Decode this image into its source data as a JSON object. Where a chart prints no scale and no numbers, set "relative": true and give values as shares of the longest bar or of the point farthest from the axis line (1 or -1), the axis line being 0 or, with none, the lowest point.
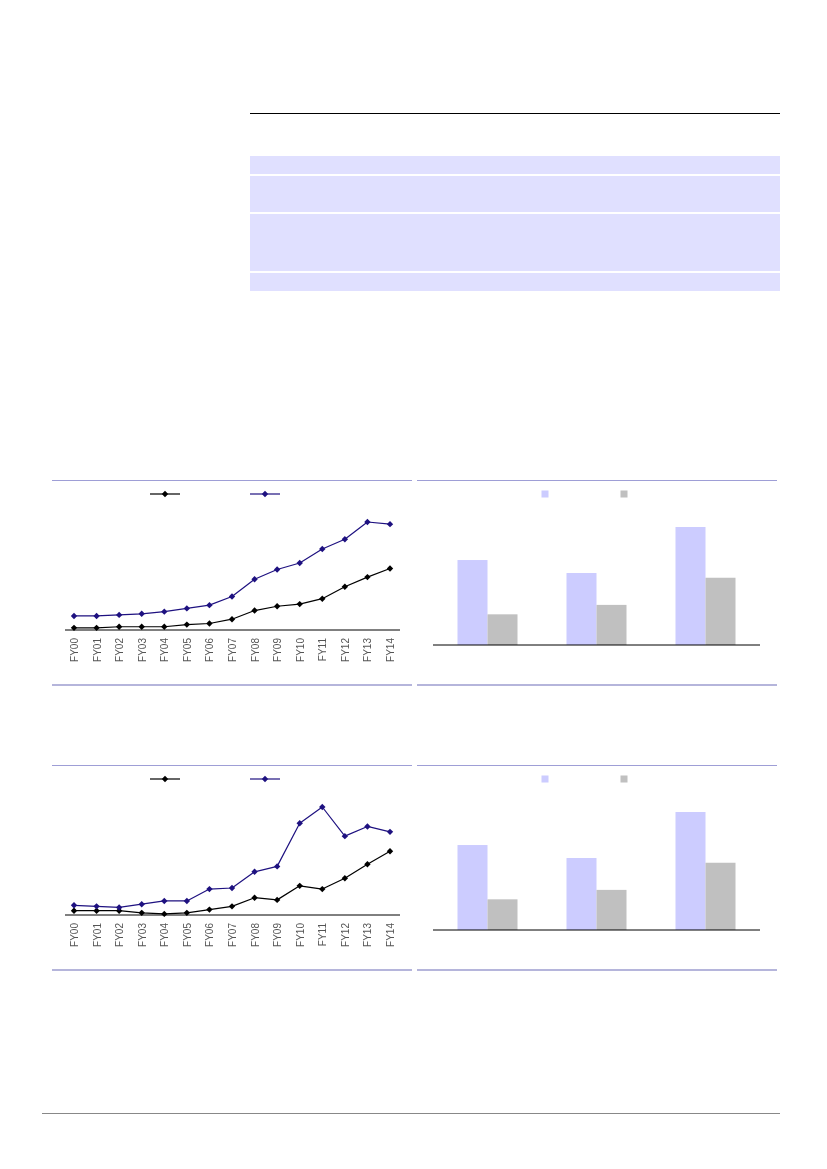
{
  "chart_data": [
    {
      "type": "line",
      "relative": true,
      "marker": "diamond",
      "categories": [
        "FY00",
        "FY01",
        "FY02",
        "FY03",
        "FY04",
        "FY05",
        "FY06",
        "FY07",
        "FY08",
        "FY09",
        "FY10",
        "FY11",
        "FY12",
        "FY13",
        "FY14"
      ],
      "series": [
        {
          "color": "#000000",
          "values": [
            0.02,
            0.02,
            0.03,
            0.03,
            0.03,
            0.05,
            0.06,
            0.1,
            0.18,
            0.22,
            0.24,
            0.29,
            0.4,
            0.49,
            0.57
          ]
        },
        {
          "color": "#1e1180",
          "values": [
            0.13,
            0.13,
            0.14,
            0.15,
            0.17,
            0.2,
            0.23,
            0.31,
            0.47,
            0.56,
            0.62,
            0.75,
            0.84,
            1,
            0.98
          ]
        }
      ]
    },
    {
      "type": "bar",
      "relative": true,
      "categories": [
        null,
        null,
        null
      ],
      "series": [
        {
          "color": "#ccccff",
          "values": [
            0.72,
            0.61,
            1
          ]
        },
        {
          "color": "#c0c0c0",
          "values": [
            0.26,
            0.34,
            0.57
          ]
        }
      ]
    },
    {
      "type": "line",
      "relative": true,
      "marker": "diamond",
      "categories": [
        "FY00",
        "FY01",
        "FY02",
        "FY03",
        "FY04",
        "FY05",
        "FY06",
        "FY07",
        "FY08",
        "FY09",
        "FY10",
        "FY11",
        "FY12",
        "FY13",
        "FY14"
      ],
      "series": [
        {
          "color": "#000000",
          "values": [
            0.04,
            0.04,
            0.04,
            0.02,
            0.01,
            0.02,
            0.05,
            0.08,
            0.16,
            0.14,
            0.27,
            0.24,
            0.34,
            0.47,
            0.59
          ]
        },
        {
          "color": "#1e1180",
          "values": [
            0.09,
            0.08,
            0.07,
            0.1,
            0.13,
            0.13,
            0.24,
            0.25,
            0.4,
            0.45,
            0.85,
            1,
            0.73,
            0.82,
            0.77
          ]
        }
      ]
    },
    {
      "type": "bar",
      "relative": true,
      "categories": [
        null,
        null,
        null
      ],
      "series": [
        {
          "color": "#ccccff",
          "values": [
            0.72,
            0.61,
            1
          ]
        },
        {
          "color": "#c0c0c0",
          "values": [
            0.26,
            0.34,
            0.57
          ]
        }
      ]
    }
  ]
}
